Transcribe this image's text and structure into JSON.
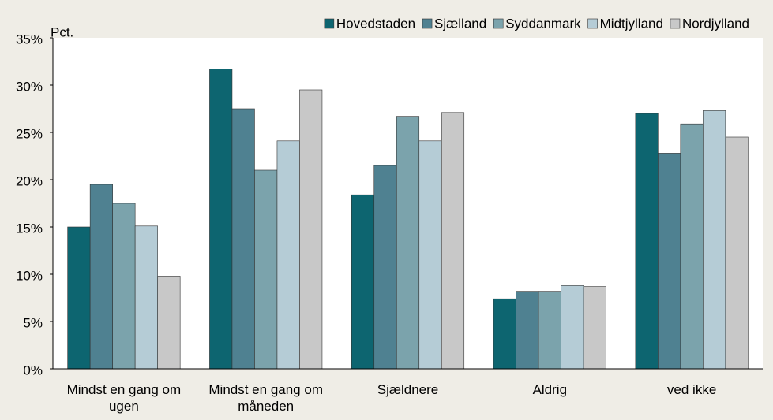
{
  "chart_data": {
    "type": "bar",
    "y_axis_label": "Pct.",
    "categories": [
      "Mindst en gang om ugen",
      "Mindst en gang om måneden",
      "Sjældnere",
      "Aldrig",
      "ved ikke"
    ],
    "series": [
      {
        "name": "Hovedstaden",
        "color": "#0d6570",
        "values": [
          15.0,
          31.7,
          18.4,
          7.4,
          27.0
        ]
      },
      {
        "name": "Sjælland",
        "color": "#4f8191",
        "values": [
          19.5,
          27.5,
          21.5,
          8.2,
          22.8
        ]
      },
      {
        "name": "Syddanmark",
        "color": "#7ba3ac",
        "values": [
          17.5,
          21.0,
          26.7,
          8.2,
          25.9
        ]
      },
      {
        "name": "Midtjylland",
        "color": "#b5ccd6",
        "values": [
          15.1,
          24.1,
          24.1,
          8.8,
          27.3
        ]
      },
      {
        "name": "Nordjylland",
        "color": "#c8c8c8",
        "values": [
          9.8,
          29.5,
          27.1,
          8.7,
          24.5
        ]
      }
    ],
    "ylim": [
      0,
      35
    ],
    "yticks": [
      {
        "value": 0,
        "label": "0%"
      },
      {
        "value": 5,
        "label": "5%"
      },
      {
        "value": 10,
        "label": "10%"
      },
      {
        "value": 15,
        "label": "15%"
      },
      {
        "value": 20,
        "label": "20%"
      },
      {
        "value": 25,
        "label": "25%"
      },
      {
        "value": 30,
        "label": "30%"
      },
      {
        "value": 35,
        "label": "35%"
      }
    ],
    "legend": "top-right",
    "grid": false
  }
}
